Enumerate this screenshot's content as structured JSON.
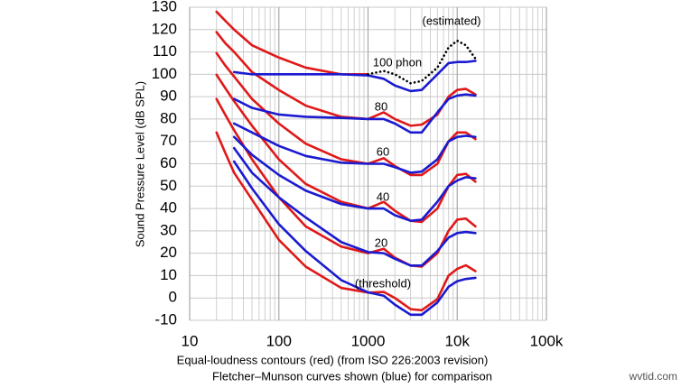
{
  "chart_data": {
    "type": "line",
    "x": [
      20,
      25,
      31.5,
      50,
      100,
      200,
      500,
      1000,
      1500,
      2000,
      3000,
      4000,
      6000,
      8000,
      10000,
      12500,
      16000
    ],
    "series": [
      {
        "color": "#e01818",
        "style": "solid",
        "values": [
          128,
          124,
          120,
          113,
          107.5,
          103,
          100,
          100,
          null,
          null,
          null,
          null,
          null,
          null,
          null,
          null,
          null
        ]
      },
      {
        "color": "#e01818",
        "style": "solid",
        "values": [
          118.9,
          114,
          110,
          101,
          93,
          86,
          81,
          80,
          83,
          80,
          77,
          77.5,
          82,
          90,
          93,
          93.5,
          91
        ]
      },
      {
        "color": "#e01818",
        "style": "solid",
        "values": [
          109.5,
          104,
          99,
          89,
          78,
          69,
          62,
          60,
          62.5,
          59,
          55,
          55,
          60,
          70,
          74,
          74,
          71
        ]
      },
      {
        "color": "#e01818",
        "style": "solid",
        "values": [
          99.8,
          93.9,
          88,
          77,
          62,
          51,
          43,
          40,
          43,
          39,
          34.5,
          34,
          40,
          50,
          55,
          55.5,
          52
        ]
      },
      {
        "color": "#e01818",
        "style": "solid",
        "values": [
          89,
          82,
          75,
          62,
          45,
          32,
          23,
          20,
          22,
          18,
          14.5,
          14,
          20,
          30,
          35,
          35.5,
          32
        ]
      },
      {
        "color": "#e01818",
        "style": "solid",
        "values": [
          74,
          65,
          56,
          44,
          26,
          14,
          4.5,
          2.4,
          2.7,
          0,
          -5,
          -5.5,
          -0.5,
          10,
          13,
          14.6,
          12
        ]
      },
      {
        "color": "#1a1ad0",
        "style": "solid",
        "values": [
          null,
          null,
          101,
          100,
          100,
          100,
          100,
          99.5,
          98,
          95,
          92.5,
          93,
          100,
          105,
          105.5,
          105.5,
          106
        ]
      },
      {
        "color": "#1a1ad0",
        "style": "solid",
        "values": [
          null,
          null,
          89,
          85,
          82,
          81,
          80.5,
          80,
          80,
          78,
          74,
          74,
          83,
          89,
          90.5,
          91,
          90.5
        ]
      },
      {
        "color": "#1a1ad0",
        "style": "solid",
        "values": [
          null,
          null,
          78,
          74,
          68,
          63.5,
          60.5,
          60,
          60,
          58.5,
          56,
          56.5,
          62,
          70,
          72,
          72.5,
          72
        ]
      },
      {
        "color": "#1a1ad0",
        "style": "solid",
        "values": [
          null,
          null,
          72,
          64,
          55,
          48,
          42,
          40,
          40,
          37,
          34.5,
          35,
          43,
          50,
          52.5,
          54,
          53.5
        ]
      },
      {
        "color": "#1a1ad0",
        "style": "solid",
        "values": [
          null,
          null,
          67,
          56,
          45,
          36,
          25,
          20.5,
          20,
          17.5,
          14.5,
          14.5,
          21,
          27,
          29,
          29.5,
          29
        ]
      },
      {
        "color": "#1a1ad0",
        "style": "solid",
        "values": [
          null,
          null,
          61,
          49,
          33,
          21,
          8,
          2.5,
          1,
          -3,
          -7.5,
          -7.5,
          -2,
          5,
          7.5,
          8.5,
          9
        ]
      },
      {
        "color": "#000000",
        "style": "dotted",
        "values": [
          null,
          null,
          null,
          null,
          null,
          null,
          null,
          100,
          101.5,
          100,
          96,
          97,
          103,
          112,
          115,
          113,
          107
        ]
      }
    ],
    "xlim": [
      10,
      100000
    ],
    "xticks": [
      10,
      100,
      1000,
      {
        "value": 10000,
        "label": "10k"
      },
      {
        "value": 100000,
        "label": "100k"
      }
    ],
    "ylim": [
      -10,
      130
    ],
    "yticks": [
      -10,
      0,
      10,
      20,
      30,
      40,
      50,
      60,
      70,
      80,
      90,
      100,
      110,
      120,
      130
    ],
    "xscale": "log",
    "grid": true,
    "ylabel": "Sound Pressure Level (dB SPL)",
    "xlabel": [
      "Equal-loudness contours (red) (from ISO 226:2003 revision)",
      "Fletcher–Munson curves shown (blue) for comparison"
    ],
    "annotations": [
      "(estimated)",
      "100 phon",
      "80",
      "60",
      "40",
      "20",
      "(threshold)"
    ],
    "watermark": "wvtid.com"
  }
}
